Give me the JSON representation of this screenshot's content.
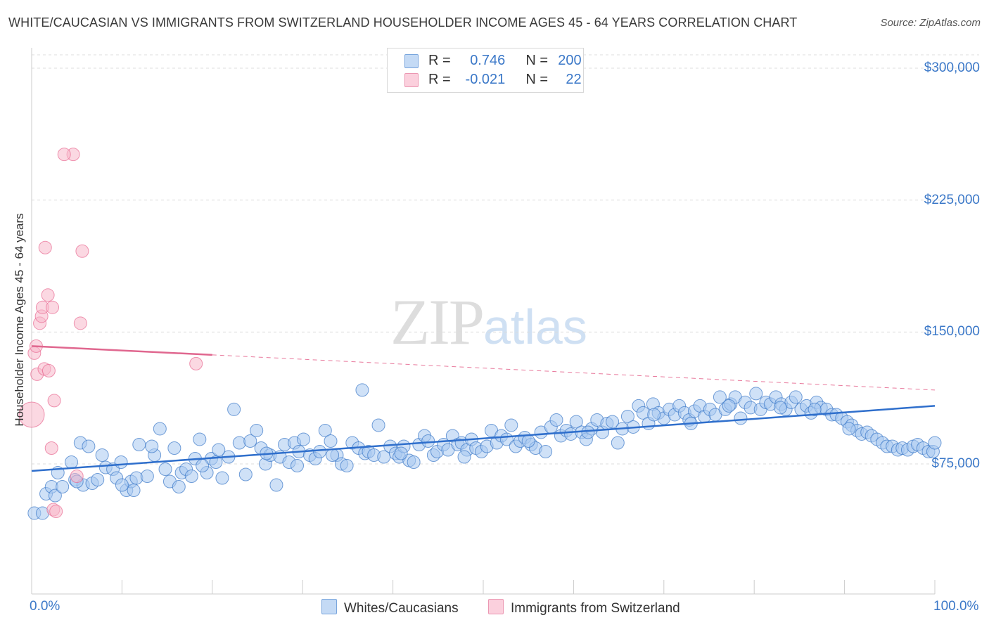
{
  "header": {
    "title": "WHITE/CAUCASIAN VS IMMIGRANTS FROM SWITZERLAND HOUSEHOLDER INCOME AGES 45 - 64 YEARS CORRELATION CHART",
    "source": "Source: ZipAtlas.com"
  },
  "watermark": {
    "zip": "ZIP",
    "atlas": "atlas"
  },
  "legend": {
    "rows": [
      {
        "r_label": "R =",
        "r_value": "0.746",
        "n_label": "N =",
        "n_value": "200",
        "color": "#a8c8f0"
      },
      {
        "r_label": "R =",
        "r_value": "-0.021",
        "n_label": "N =",
        "n_value": "22",
        "color": "#f7b8cb"
      }
    ]
  },
  "chart_data": {
    "type": "scatter",
    "title": "WHITE/CAUCASIAN VS IMMIGRANTS FROM SWITZERLAND HOUSEHOLDER INCOME AGES 45 - 64 YEARS CORRELATION CHART",
    "xlabel": "",
    "ylabel": "Householder Income Ages 45 - 64 years",
    "xlim": [
      0,
      100
    ],
    "ylim": [
      0,
      310000
    ],
    "x_tick_labels": [
      "0.0%",
      "100.0%"
    ],
    "y_ticks": [
      75000,
      150000,
      225000,
      300000
    ],
    "y_tick_labels": [
      "$75,000",
      "$150,000",
      "$225,000",
      "$300,000"
    ],
    "grid": "horizontal-dashed",
    "legend_position": "top-center",
    "series": [
      {
        "name": "Whites/Caucasians",
        "color": "#3b78c8",
        "fill": "#a8c8f0",
        "trend": {
          "x0": 0,
          "y0": 71000,
          "x1": 100,
          "y1": 108000
        },
        "points": [
          [
            0.3,
            47000
          ],
          [
            1.2,
            47000
          ],
          [
            1.6,
            58000
          ],
          [
            2.2,
            62000
          ],
          [
            2.6,
            57000
          ],
          [
            3.4,
            62000
          ],
          [
            4.4,
            76000
          ],
          [
            4.8,
            66000
          ],
          [
            5.4,
            87000
          ],
          [
            5.7,
            63000
          ],
          [
            6.3,
            85000
          ],
          [
            6.7,
            64000
          ],
          [
            7.8,
            80000
          ],
          [
            8.2,
            73000
          ],
          [
            9.0,
            72000
          ],
          [
            9.4,
            67000
          ],
          [
            9.9,
            76000
          ],
          [
            10.5,
            60000
          ],
          [
            11.0,
            65000
          ],
          [
            11.6,
            67000
          ],
          [
            11.9,
            86000
          ],
          [
            12.8,
            68000
          ],
          [
            13.6,
            80000
          ],
          [
            14.2,
            95000
          ],
          [
            14.8,
            72000
          ],
          [
            15.3,
            65000
          ],
          [
            15.8,
            84000
          ],
          [
            16.6,
            70000
          ],
          [
            17.1,
            72000
          ],
          [
            17.7,
            68000
          ],
          [
            18.1,
            78000
          ],
          [
            18.6,
            89000
          ],
          [
            19.4,
            70000
          ],
          [
            19.9,
            78000
          ],
          [
            20.4,
            76000
          ],
          [
            21.1,
            67000
          ],
          [
            21.8,
            79000
          ],
          [
            22.4,
            106000
          ],
          [
            23.0,
            87000
          ],
          [
            23.7,
            69000
          ],
          [
            24.2,
            88000
          ],
          [
            24.9,
            94000
          ],
          [
            25.4,
            84000
          ],
          [
            25.9,
            75000
          ],
          [
            26.4,
            80000
          ],
          [
            27.1,
            63000
          ],
          [
            27.5,
            79000
          ],
          [
            28.0,
            86000
          ],
          [
            28.5,
            76000
          ],
          [
            29.1,
            87000
          ],
          [
            29.6,
            82000
          ],
          [
            30.1,
            89000
          ],
          [
            30.8,
            80000
          ],
          [
            31.4,
            78000
          ],
          [
            31.9,
            82000
          ],
          [
            32.5,
            94000
          ],
          [
            33.1,
            88000
          ],
          [
            33.8,
            80000
          ],
          [
            34.3,
            75000
          ],
          [
            34.9,
            74000
          ],
          [
            35.5,
            87000
          ],
          [
            36.2,
            84000
          ],
          [
            36.9,
            81000
          ],
          [
            37.3,
            82000
          ],
          [
            37.9,
            80000
          ],
          [
            38.4,
            97000
          ],
          [
            39.0,
            79000
          ],
          [
            39.7,
            85000
          ],
          [
            40.3,
            81000
          ],
          [
            40.7,
            79000
          ],
          [
            41.2,
            85000
          ],
          [
            41.8,
            77000
          ],
          [
            42.3,
            76000
          ],
          [
            42.9,
            86000
          ],
          [
            43.5,
            91000
          ],
          [
            43.9,
            88000
          ],
          [
            44.5,
            80000
          ],
          [
            44.9,
            82000
          ],
          [
            45.6,
            86000
          ],
          [
            46.1,
            83000
          ],
          [
            46.6,
            91000
          ],
          [
            47.2,
            86000
          ],
          [
            47.6,
            87000
          ],
          [
            48.2,
            83000
          ],
          [
            48.7,
            89000
          ],
          [
            49.2,
            84000
          ],
          [
            49.8,
            82000
          ],
          [
            50.4,
            85000
          ],
          [
            50.9,
            94000
          ],
          [
            51.5,
            87000
          ],
          [
            52.0,
            91000
          ],
          [
            52.6,
            89000
          ],
          [
            53.1,
            97000
          ],
          [
            53.6,
            85000
          ],
          [
            54.1,
            88000
          ],
          [
            54.6,
            90000
          ],
          [
            55.3,
            86000
          ],
          [
            55.8,
            84000
          ],
          [
            56.4,
            93000
          ],
          [
            56.9,
            82000
          ],
          [
            57.5,
            96000
          ],
          [
            58.1,
            100000
          ],
          [
            58.6,
            91000
          ],
          [
            59.2,
            94000
          ],
          [
            59.7,
            92000
          ],
          [
            60.3,
            99000
          ],
          [
            60.9,
            93000
          ],
          [
            61.4,
            89000
          ],
          [
            62.0,
            95000
          ],
          [
            62.6,
            100000
          ],
          [
            63.2,
            93000
          ],
          [
            63.7,
            98000
          ],
          [
            64.3,
            99000
          ],
          [
            64.9,
            87000
          ],
          [
            65.4,
            95000
          ],
          [
            66.0,
            102000
          ],
          [
            66.6,
            96000
          ],
          [
            67.2,
            108000
          ],
          [
            67.7,
            104000
          ],
          [
            68.3,
            98000
          ],
          [
            68.8,
            109000
          ],
          [
            69.4,
            104000
          ],
          [
            70.0,
            101000
          ],
          [
            70.6,
            106000
          ],
          [
            71.2,
            103000
          ],
          [
            71.7,
            108000
          ],
          [
            72.3,
            104000
          ],
          [
            72.8,
            100000
          ],
          [
            73.4,
            105000
          ],
          [
            74.0,
            108000
          ],
          [
            74.5,
            102000
          ],
          [
            75.1,
            106000
          ],
          [
            75.7,
            103000
          ],
          [
            76.2,
            113000
          ],
          [
            76.8,
            106000
          ],
          [
            77.4,
            109000
          ],
          [
            77.9,
            113000
          ],
          [
            78.5,
            101000
          ],
          [
            79.0,
            110000
          ],
          [
            79.6,
            107000
          ],
          [
            80.2,
            115000
          ],
          [
            80.7,
            106000
          ],
          [
            81.3,
            110000
          ],
          [
            81.8,
            109000
          ],
          [
            82.4,
            113000
          ],
          [
            83.0,
            109000
          ],
          [
            83.5,
            106000
          ],
          [
            84.1,
            110000
          ],
          [
            84.6,
            113000
          ],
          [
            85.2,
            106000
          ],
          [
            85.8,
            108000
          ],
          [
            86.3,
            104000
          ],
          [
            86.9,
            110000
          ],
          [
            87.4,
            107000
          ],
          [
            88.0,
            106000
          ],
          [
            88.6,
            103000
          ],
          [
            89.1,
            103000
          ],
          [
            89.7,
            101000
          ],
          [
            90.3,
            99000
          ],
          [
            90.8,
            97000
          ],
          [
            91.4,
            94000
          ],
          [
            91.9,
            92000
          ],
          [
            92.5,
            93000
          ],
          [
            93.0,
            91000
          ],
          [
            93.6,
            89000
          ],
          [
            94.2,
            87000
          ],
          [
            94.7,
            85000
          ],
          [
            95.3,
            85000
          ],
          [
            95.9,
            83000
          ],
          [
            96.4,
            84000
          ],
          [
            97.0,
            83000
          ],
          [
            97.6,
            85000
          ],
          [
            98.1,
            86000
          ],
          [
            98.7,
            84000
          ],
          [
            99.3,
            82000
          ],
          [
            99.8,
            82000
          ],
          [
            100.0,
            87000
          ],
          [
            36.6,
            117000
          ],
          [
            26.0,
            81000
          ],
          [
            18.9,
            74000
          ],
          [
            7.3,
            66000
          ],
          [
            10.0,
            63000
          ],
          [
            13.3,
            85000
          ],
          [
            16.3,
            62000
          ],
          [
            29.4,
            74000
          ],
          [
            40.9,
            81000
          ],
          [
            47.9,
            79000
          ],
          [
            55.0,
            88000
          ],
          [
            61.6,
            93000
          ],
          [
            68.9,
            103000
          ],
          [
            73.0,
            98000
          ],
          [
            77.2,
            108000
          ],
          [
            82.9,
            107000
          ],
          [
            86.7,
            106000
          ],
          [
            90.5,
            95000
          ],
          [
            2.9,
            70000
          ],
          [
            5.0,
            65000
          ],
          [
            11.3,
            60000
          ],
          [
            20.7,
            83000
          ],
          [
            33.3,
            80000
          ]
        ]
      },
      {
        "name": "Immigrants from Switzerland",
        "color": "#e86a92",
        "fill": "#f7b8cb",
        "trend": {
          "x0": 0,
          "y0": 142000,
          "x1": 20,
          "y1": 137000,
          "dash_to": {
            "x": 100,
            "y": 117000
          }
        },
        "points": [
          [
            0.0,
            103000
          ],
          [
            0.3,
            138000
          ],
          [
            0.5,
            142000
          ],
          [
            0.6,
            126000
          ],
          [
            0.9,
            155000
          ],
          [
            1.1,
            159000
          ],
          [
            1.2,
            164000
          ],
          [
            1.4,
            129000
          ],
          [
            1.5,
            198000
          ],
          [
            1.8,
            171000
          ],
          [
            1.9,
            128000
          ],
          [
            2.3,
            164000
          ],
          [
            2.5,
            111000
          ],
          [
            2.4,
            49000
          ],
          [
            2.7,
            48000
          ],
          [
            2.2,
            84000
          ],
          [
            4.6,
            251000
          ],
          [
            3.6,
            251000
          ],
          [
            5.4,
            155000
          ],
          [
            5.6,
            196000
          ],
          [
            18.2,
            132000
          ],
          [
            5.0,
            68000
          ]
        ]
      }
    ]
  }
}
